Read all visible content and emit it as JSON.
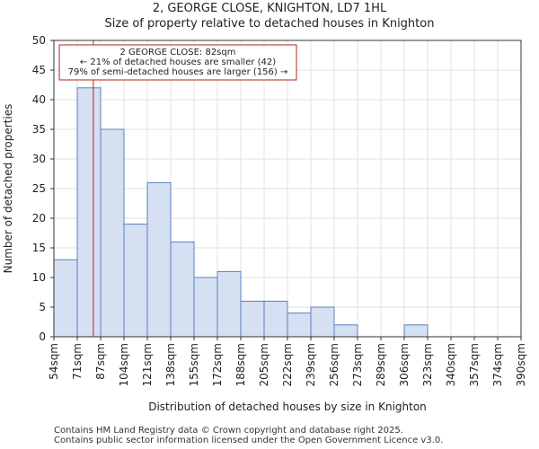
{
  "header": {
    "title": "2, GEORGE CLOSE, KNIGHTON, LD7 1HL",
    "subtitle": "Size of property relative to detached houses in Knighton"
  },
  "footer": {
    "line1": "Contains HM Land Registry data © Crown copyright and database right 2025.",
    "line2": "Contains public sector information licensed under the Open Government Licence v3.0."
  },
  "chart_data": {
    "type": "bar",
    "title": "Size of property relative to detached houses in Knighton",
    "xlabel": "Distribution of detached houses by size in Knighton",
    "ylabel": "Number of detached properties",
    "ylim": [
      0,
      50
    ],
    "yticks": [
      0,
      5,
      10,
      15,
      20,
      25,
      30,
      35,
      40,
      45,
      50
    ],
    "bin_edges": [
      54,
      71,
      87,
      104,
      121,
      138,
      155,
      172,
      188,
      205,
      222,
      239,
      256,
      273,
      289,
      306,
      323,
      340,
      357,
      374,
      390
    ],
    "tick_labels": [
      "54sqm",
      "71sqm",
      "87sqm",
      "104sqm",
      "121sqm",
      "138sqm",
      "155sqm",
      "172sqm",
      "188sqm",
      "205sqm",
      "222sqm",
      "239sqm",
      "256sqm",
      "273sqm",
      "289sqm",
      "306sqm",
      "323sqm",
      "340sqm",
      "357sqm",
      "374sqm",
      "390sqm"
    ],
    "values": [
      13,
      42,
      35,
      19,
      26,
      16,
      10,
      11,
      6,
      6,
      4,
      5,
      2,
      0,
      0,
      2,
      0,
      0,
      0,
      0
    ],
    "marker": {
      "value_sqm": 82,
      "label_line1": "2 GEORGE CLOSE: 82sqm",
      "label_line2": "← 21% of detached houses are smaller (42)",
      "label_line3": "79% of semi-detached houses are larger (156) →"
    },
    "colors": {
      "bar_fill": "#d6e0f3",
      "bar_stroke": "#5b7fbf",
      "marker_line": "#b22222",
      "grid": "#e0e0e0"
    },
    "grid": true
  }
}
